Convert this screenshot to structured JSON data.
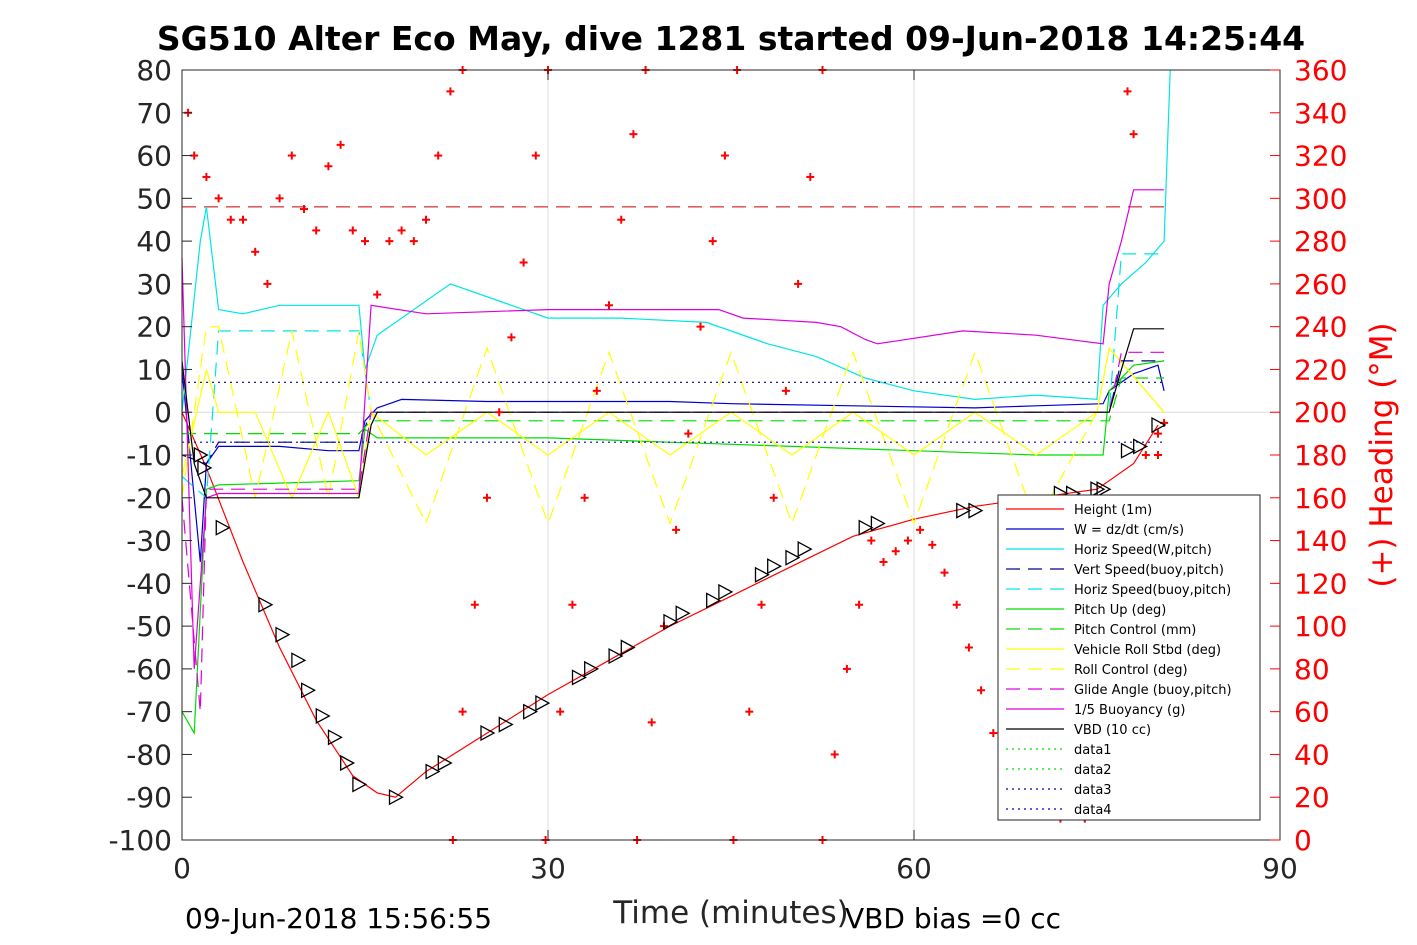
{
  "chart_data": {
    "type": "line",
    "title": "SG510 Alter Eco May, dive 1281 started 09-Jun-2018 14:25:44",
    "xlabel": "Time (minutes)",
    "ylabel_right": "(+) Heading (°M)",
    "footer_left": "09-Jun-2018 15:56:55",
    "footer_right": "VBD bias =0 cc",
    "xlim": [
      0,
      90
    ],
    "ylim": [
      -100,
      80
    ],
    "ylim_right": [
      0,
      360
    ],
    "xticks": [
      "0",
      "30",
      "60",
      "90"
    ],
    "xtick_values": [
      0,
      30,
      60,
      90
    ],
    "yticks": [
      "80",
      "70",
      "60",
      "50",
      "40",
      "30",
      "20",
      "10",
      "0",
      "-10",
      "-20",
      "-30",
      "-40",
      "-50",
      "-60",
      "-70",
      "-80",
      "-90",
      "-100"
    ],
    "ytick_values": [
      80,
      70,
      60,
      50,
      40,
      30,
      20,
      10,
      0,
      -10,
      -20,
      -30,
      -40,
      -50,
      -60,
      -70,
      -80,
      -90,
      -100
    ],
    "yticks_right": [
      "360",
      "340",
      "320",
      "300",
      "280",
      "260",
      "240",
      "220",
      "200",
      "180",
      "160",
      "140",
      "120",
      "100",
      "80",
      "60",
      "40",
      "20",
      "0"
    ],
    "ytick_right_values": [
      360,
      340,
      320,
      300,
      280,
      260,
      240,
      220,
      200,
      180,
      160,
      140,
      120,
      100,
      80,
      60,
      40,
      20,
      0
    ],
    "grid": true,
    "legend_position": "bottom-right",
    "series": [
      {
        "name": "Height (1m)",
        "color": "#ff0000",
        "style": "solid",
        "x": [
          0,
          2,
          5,
          8,
          11,
          14,
          16,
          17.5,
          20,
          25,
          30,
          35,
          40,
          45,
          50,
          55,
          60,
          65,
          70,
          75,
          78,
          80
        ],
        "y": [
          0,
          -13,
          -35,
          -55,
          -72,
          -85,
          -89,
          -90,
          -84,
          -75,
          -66,
          -58,
          -50,
          -43,
          -36,
          -29,
          -25,
          -22,
          -20,
          -18,
          -12,
          -3
        ]
      },
      {
        "name": "W = dz/dt (cm/s)",
        "color": "#0000cc",
        "style": "solid",
        "x": [
          0,
          1.5,
          2,
          3,
          8,
          12,
          14.5,
          15,
          16,
          18,
          25,
          30,
          40,
          45,
          55,
          65,
          70,
          75.5,
          76,
          78,
          80,
          80.5
        ],
        "y": [
          10,
          -35,
          -12,
          -8,
          -8,
          -9,
          -9,
          -2,
          1,
          3,
          2.5,
          2.5,
          2.5,
          2,
          1.5,
          1,
          1.5,
          2,
          5,
          9,
          11,
          5
        ]
      },
      {
        "name": "Horiz Speed(W,pitch)",
        "color": "#00e5e5",
        "style": "solid",
        "x": [
          0,
          1.5,
          2,
          3,
          5,
          8,
          12,
          14.5,
          15,
          16,
          18,
          22,
          26,
          30,
          36,
          43,
          48,
          52,
          56,
          60,
          65,
          70,
          75,
          75.5,
          77,
          79,
          80.5,
          81
        ],
        "y": [
          0,
          40,
          48,
          24,
          23,
          25,
          25,
          25,
          10,
          18,
          22,
          30,
          26,
          22,
          22,
          21,
          16,
          13,
          8,
          5,
          3,
          4,
          3,
          25,
          30,
          35,
          40,
          80
        ]
      },
      {
        "name": "Vert Speed(buoy,pitch)",
        "color": "#00008b",
        "style": "dashed",
        "x": [
          0,
          2,
          3,
          14.5,
          15.5,
          76,
          77,
          80.5
        ],
        "y": [
          -10,
          -12,
          -7,
          -7,
          0,
          0,
          12,
          12
        ]
      },
      {
        "name": "Horiz Speed(buoy,pitch)",
        "color": "#00e5e5",
        "style": "dashed",
        "x": [
          0,
          2,
          3,
          14.5,
          15.5,
          76,
          77,
          80.5
        ],
        "y": [
          -15,
          -20,
          19,
          19,
          0,
          0,
          37,
          37
        ]
      },
      {
        "name": "Pitch Up (deg)",
        "color": "#00dd00",
        "style": "solid",
        "x": [
          0,
          1,
          2,
          3,
          14.5,
          15,
          16,
          20,
          30,
          40,
          50,
          60,
          70,
          75.5,
          76,
          78,
          80.5
        ],
        "y": [
          -70,
          -75,
          -18,
          -17,
          -16,
          -4,
          -6,
          -6,
          -6,
          -7,
          -8,
          -9,
          -10,
          -10,
          5,
          11,
          12
        ]
      },
      {
        "name": "Pitch Control (mm)",
        "color": "#00dd00",
        "style": "dashed",
        "x": [
          0,
          2,
          14.5,
          15.5,
          76,
          77,
          80.5
        ],
        "y": [
          -5,
          -5,
          -5,
          -2,
          -2,
          8,
          8
        ]
      },
      {
        "name": "Vehicle Roll Stbd (deg)",
        "color": "#ffff00",
        "style": "solid",
        "x": [
          0,
          2,
          3,
          6,
          9,
          12,
          14.5,
          15.5,
          20,
          25,
          30,
          35,
          40,
          45,
          50,
          55,
          60,
          65,
          70,
          75,
          76,
          80.5
        ],
        "y": [
          -15,
          10,
          0,
          0,
          -20,
          0,
          -20,
          0,
          -10,
          0,
          -10,
          0,
          -10,
          0,
          -10,
          0,
          -10,
          0,
          -10,
          0,
          15,
          0
        ]
      },
      {
        "name": "Roll Control (deg)",
        "color": "#ffff00",
        "style": "dashed",
        "x": [
          0,
          2,
          3,
          6,
          9,
          12,
          14.5,
          15.5,
          20,
          25,
          30,
          35,
          40,
          45,
          50,
          55,
          60,
          65,
          70,
          75,
          76,
          80.5
        ],
        "y": [
          -20,
          20,
          20,
          -20,
          19,
          -20,
          19,
          0,
          -26,
          15,
          -26,
          14,
          -26,
          14,
          -26,
          14,
          -26,
          14,
          -26,
          0,
          15,
          0
        ]
      },
      {
        "name": "Glide Angle (buoy,pitch)",
        "color": "#dd00dd",
        "style": "dashed",
        "x": [
          0,
          1.5,
          2,
          14.5,
          15.5,
          76,
          77,
          80.5
        ],
        "y": [
          -20,
          -70,
          -18,
          -18,
          0,
          0,
          14,
          14
        ]
      },
      {
        "name": "1/5 Buoyancy (g)",
        "color": "#dd00dd",
        "style": "solid",
        "x": [
          0,
          1,
          2,
          3,
          14.5,
          15.5,
          20,
          30,
          44,
          46,
          52,
          54,
          56,
          57,
          64,
          70,
          75.5,
          76,
          77,
          78,
          80.5
        ],
        "y": [
          36,
          -60,
          -20,
          -19,
          -19,
          25,
          23,
          24,
          24,
          22,
          21,
          20,
          17,
          16,
          19,
          18,
          16,
          30,
          40,
          52,
          52
        ]
      },
      {
        "name": "VBD (10 cc)",
        "color": "#000000",
        "style": "solid",
        "x": [
          0,
          1,
          2,
          3,
          14.5,
          15.5,
          16,
          76,
          77,
          78,
          80.5
        ],
        "y": [
          12,
          -12,
          -20,
          -20,
          -20,
          -3,
          0,
          0,
          10,
          19.5,
          19.5
        ]
      },
      {
        "name": "data1",
        "color": "#00dd00",
        "style": "dotted",
        "x": [],
        "y": []
      },
      {
        "name": "data2",
        "color": "#00dd00",
        "style": "dotted",
        "x": [],
        "y": []
      },
      {
        "name": "data3",
        "color": "#00008b",
        "style": "dotted",
        "x": [
          0,
          80.5
        ],
        "y": [
          7,
          7
        ]
      },
      {
        "name": "data4",
        "color": "#0000cc",
        "style": "dotted",
        "x": [
          0,
          80.5
        ],
        "y": [
          -7,
          -7
        ]
      }
    ],
    "reference_lines": [
      {
        "color": "#cc0000",
        "style": "dashed",
        "y": 48
      }
    ],
    "heading": {
      "color": "#ff0000",
      "marker": "+",
      "segments": [
        {
          "x": [
            0.5,
            1,
            2,
            3,
            4,
            5,
            6,
            7,
            8,
            9,
            10,
            11,
            12,
            13,
            14,
            15,
            16,
            17,
            18,
            19,
            20,
            21,
            22,
            23
          ],
          "y": [
            340,
            320,
            310,
            300,
            290,
            290,
            275,
            260,
            300,
            320,
            295,
            285,
            315,
            325,
            285,
            280,
            255,
            280,
            285,
            280,
            290,
            320,
            350,
            360
          ]
        },
        {
          "x": [
            22.2,
            23,
            24,
            25,
            26,
            27,
            28,
            29,
            30
          ],
          "y": [
            0,
            60,
            110,
            160,
            200,
            235,
            270,
            320,
            360
          ]
        },
        {
          "x": [
            29.8,
            31,
            32,
            33,
            34,
            35,
            36,
            37,
            38
          ],
          "y": [
            0,
            60,
            110,
            160,
            210,
            250,
            290,
            330,
            360
          ]
        },
        {
          "x": [
            37.3,
            38.5,
            39.5,
            40.5,
            41.5,
            42.5,
            43.5,
            44.5,
            45.5
          ],
          "y": [
            0,
            55,
            100,
            145,
            190,
            240,
            280,
            320,
            360
          ]
        },
        {
          "x": [
            45.2,
            46.5,
            47.5,
            48.5,
            49.5,
            50.5,
            51.5,
            52.5
          ],
          "y": [
            0,
            60,
            110,
            160,
            210,
            260,
            310,
            360
          ]
        },
        {
          "x": [
            52.5,
            53.5,
            54.5,
            55.5,
            56.5,
            57.5,
            58.5,
            59.5,
            60.5,
            61.5,
            62.5,
            63.5,
            64.5,
            65.5,
            66.5,
            67.5,
            68.5
          ],
          "y": [
            0,
            40,
            80,
            110,
            140,
            130,
            135,
            140,
            145,
            138,
            125,
            110,
            90,
            70,
            50,
            30,
            20
          ]
        },
        {
          "x": [
            70,
            72,
            74,
            76,
            78,
            79,
            80
          ],
          "y": [
            15,
            10,
            10,
            15,
            25,
            30,
            180
          ]
        },
        {
          "x": [
            77.5,
            78,
            79,
            80,
            80.5
          ],
          "y": [
            350,
            330,
            180,
            190,
            195
          ]
        }
      ]
    },
    "depth_markers": {
      "x": [
        1.5,
        1.8,
        3.3,
        6.8,
        8.2,
        9.5,
        10.3,
        11.5,
        12.5,
        13.5,
        14.5,
        17.5,
        20.5,
        21.5,
        25,
        26.5,
        28.5,
        29.5,
        32.5,
        33.5,
        35.5,
        36.5,
        40,
        41,
        43.5,
        44.5,
        47.5,
        48.5,
        50,
        51,
        56,
        57,
        64,
        65,
        72,
        73,
        75,
        75.5,
        77.5,
        78.5,
        80
      ],
      "y": [
        -10,
        -13,
        -27,
        -45,
        -52,
        -58,
        -65,
        -71,
        -76,
        -82,
        -87,
        -90,
        -84,
        -82,
        -75,
        -73,
        -70,
        -68,
        -62,
        -60,
        -57,
        -55,
        -49,
        -47,
        -44,
        -42,
        -38,
        -36,
        -34,
        -32,
        -27,
        -26,
        -23,
        -23,
        -19,
        -19,
        -18,
        -18,
        -9,
        -8,
        -3
      ]
    }
  }
}
